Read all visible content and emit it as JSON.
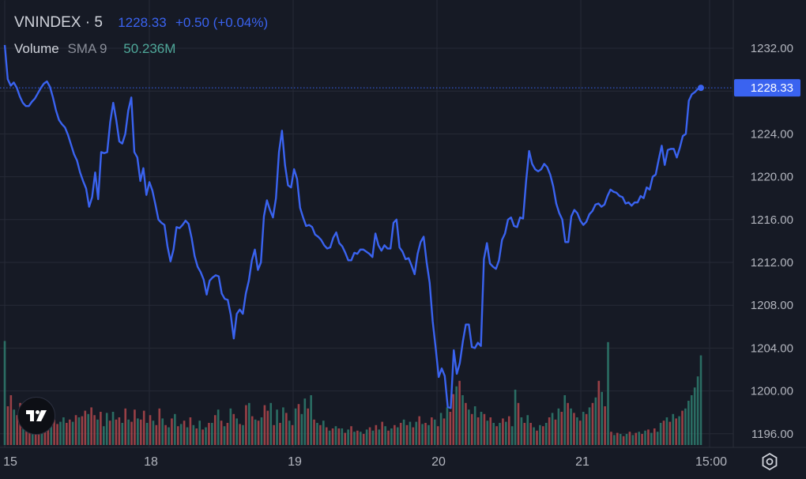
{
  "header": {
    "symbol": "VNINDEX · 5",
    "price": "1228.33",
    "change": "+0.50 (+0.04%)"
  },
  "volume_legend": {
    "label": "Volume",
    "sma": "SMA 9",
    "value": "50.236M"
  },
  "price_tag": "1228.33",
  "colors": {
    "background": "#161a25",
    "line": "#3a63f0",
    "grid": "#262a36",
    "volume_up": "#2e7d6e",
    "volume_down": "#b0484c",
    "tag_bg": "#3a63f0"
  },
  "icons": {
    "logo": "tradingview-logo-icon",
    "settings": "settings-gear-icon"
  },
  "chart_data": {
    "type": "line",
    "symbol": "VNINDEX",
    "interval": "5",
    "ylim": [
      1194.5,
      1234.5
    ],
    "y_ticks": [
      "1232.00",
      "1228.00",
      "1224.00",
      "1220.00",
      "1216.00",
      "1212.00",
      "1208.00",
      "1204.00",
      "1200.00",
      "1196.00"
    ],
    "x_ticks": [
      "15",
      "18",
      "19",
      "20",
      "21",
      "15:00"
    ],
    "series": [
      {
        "values": [
          1232.3,
          1229.1,
          1228.5,
          1228.8,
          1228.3,
          1227.5,
          1226.9,
          1226.6,
          1226.6,
          1227.0,
          1227.3,
          1227.8,
          1228.3,
          1228.7,
          1228.9,
          1228.4,
          1227.4,
          1226.2,
          1225.3,
          1224.9,
          1224.6,
          1223.9,
          1223.0,
          1222.1,
          1221.5,
          1220.4,
          1219.6,
          1218.9,
          1217.2,
          1218.1,
          1220.4,
          1217.9,
          1222.3,
          1222.2,
          1222.3,
          1225.1,
          1226.9,
          1225.3,
          1223.3,
          1223.1,
          1224.0,
          1226.2,
          1227.4,
          1222.3,
          1221.8,
          1219.6,
          1220.8,
          1218.3,
          1219.5,
          1218.7,
          1217.4,
          1216.0,
          1215.7,
          1215.5,
          1213.5,
          1212.1,
          1213.2,
          1215.3,
          1215.2,
          1215.5,
          1215.9,
          1215.6,
          1214.3,
          1212.6,
          1211.6,
          1211.1,
          1210.4,
          1209.0,
          1210.3,
          1210.6,
          1210.8,
          1210.7,
          1209.1,
          1208.6,
          1208.5,
          1207.1,
          1204.9,
          1207.2,
          1207.6,
          1207.2,
          1209.1,
          1210.3,
          1212.2,
          1213.2,
          1211.3,
          1212.0,
          1216.3,
          1217.8,
          1216.9,
          1216.2,
          1218.0,
          1222.3,
          1224.3,
          1221.1,
          1219.2,
          1219.0,
          1220.7,
          1219.8,
          1217.1,
          1216.2,
          1215.4,
          1215.5,
          1215.3,
          1214.6,
          1214.4,
          1214.1,
          1213.6,
          1213.3,
          1213.4,
          1214.3,
          1214.8,
          1213.8,
          1213.5,
          1212.9,
          1212.2,
          1212.2,
          1212.9,
          1212.8,
          1213.2,
          1213.2,
          1213.0,
          1212.8,
          1212.5,
          1214.7,
          1213.6,
          1213.1,
          1213.6,
          1213.3,
          1213.3,
          1215.7,
          1216.0,
          1213.4,
          1213.0,
          1212.3,
          1212.4,
          1211.7,
          1210.9,
          1212.8,
          1213.9,
          1214.4,
          1212.0,
          1210.1,
          1206.5,
          1204.0,
          1201.3,
          1202.1,
          1201.4,
          1198.5,
          1198.4,
          1203.8,
          1201.6,
          1202.6,
          1204.6,
          1206.2,
          1206.2,
          1204.1,
          1204.0,
          1204.5,
          1204.2,
          1212.3,
          1213.8,
          1211.9,
          1211.6,
          1211.4,
          1212.2,
          1214.1,
          1214.7,
          1216.0,
          1216.2,
          1215.4,
          1215.3,
          1216.2,
          1216.1,
          1219.6,
          1222.4,
          1221.2,
          1220.7,
          1220.5,
          1220.7,
          1221.2,
          1220.9,
          1220.2,
          1219.1,
          1217.5,
          1216.6,
          1216.0,
          1213.9,
          1213.9,
          1216.3,
          1216.9,
          1216.6,
          1215.9,
          1215.5,
          1215.8,
          1216.5,
          1216.8,
          1217.4,
          1217.5,
          1217.2,
          1217.4,
          1218.2,
          1218.8,
          1218.6,
          1218.5,
          1218.2,
          1218.1,
          1217.5,
          1217.6,
          1217.3,
          1217.6,
          1217.6,
          1218.2,
          1218.0,
          1219.0,
          1218.8,
          1220.0,
          1220.2,
          1221.6,
          1222.9,
          1221.1,
          1222.5,
          1222.6,
          1222.6,
          1221.8,
          1222.7,
          1223.8,
          1224.0,
          1227.1,
          1227.7,
          1227.9,
          1228.2,
          1228.3
        ]
      }
    ],
    "volume": [
      {
        "v": 0.94,
        "up": true
      },
      {
        "v": 0.35,
        "up": false
      },
      {
        "v": 0.45,
        "up": false
      },
      {
        "v": 0.32,
        "up": true
      },
      {
        "v": 0.27,
        "up": false
      },
      {
        "v": 0.38,
        "up": false
      },
      {
        "v": 0.22,
        "up": true
      },
      {
        "v": 0.21,
        "up": false
      },
      {
        "v": 0.28,
        "up": false
      },
      {
        "v": 0.34,
        "up": true
      },
      {
        "v": 0.26,
        "up": false
      },
      {
        "v": 0.18,
        "up": false
      },
      {
        "v": 0.23,
        "up": true
      },
      {
        "v": 0.38,
        "up": false
      },
      {
        "v": 0.3,
        "up": false
      },
      {
        "v": 0.25,
        "up": true
      },
      {
        "v": 0.23,
        "up": false
      },
      {
        "v": 0.19,
        "up": false
      },
      {
        "v": 0.21,
        "up": true
      },
      {
        "v": 0.25,
        "up": true
      },
      {
        "v": 0.2,
        "up": false
      },
      {
        "v": 0.23,
        "up": false
      },
      {
        "v": 0.21,
        "up": true
      },
      {
        "v": 0.27,
        "up": false
      },
      {
        "v": 0.25,
        "up": true
      },
      {
        "v": 0.26,
        "up": false
      },
      {
        "v": 0.31,
        "up": false
      },
      {
        "v": 0.28,
        "up": true
      },
      {
        "v": 0.34,
        "up": false
      },
      {
        "v": 0.27,
        "up": false
      },
      {
        "v": 0.23,
        "up": true
      },
      {
        "v": 0.3,
        "up": false
      },
      {
        "v": 0.17,
        "up": true
      },
      {
        "v": 0.29,
        "up": true
      },
      {
        "v": 0.22,
        "up": false
      },
      {
        "v": 0.3,
        "up": true
      },
      {
        "v": 0.23,
        "up": false
      },
      {
        "v": 0.25,
        "up": false
      },
      {
        "v": 0.2,
        "up": true
      },
      {
        "v": 0.33,
        "up": false
      },
      {
        "v": 0.23,
        "up": true
      },
      {
        "v": 0.21,
        "up": false
      },
      {
        "v": 0.32,
        "up": false
      },
      {
        "v": 0.24,
        "up": true
      },
      {
        "v": 0.23,
        "up": false
      },
      {
        "v": 0.31,
        "up": false
      },
      {
        "v": 0.2,
        "up": true
      },
      {
        "v": 0.27,
        "up": false
      },
      {
        "v": 0.22,
        "up": true
      },
      {
        "v": 0.18,
        "up": false
      },
      {
        "v": 0.33,
        "up": false
      },
      {
        "v": 0.24,
        "up": true
      },
      {
        "v": 0.18,
        "up": false
      },
      {
        "v": 0.16,
        "up": true
      },
      {
        "v": 0.24,
        "up": false
      },
      {
        "v": 0.28,
        "up": true
      },
      {
        "v": 0.17,
        "up": false
      },
      {
        "v": 0.19,
        "up": true
      },
      {
        "v": 0.22,
        "up": false
      },
      {
        "v": 0.16,
        "up": true
      },
      {
        "v": 0.25,
        "up": false
      },
      {
        "v": 0.18,
        "up": true
      },
      {
        "v": 0.15,
        "up": false
      },
      {
        "v": 0.22,
        "up": true
      },
      {
        "v": 0.14,
        "up": false
      },
      {
        "v": 0.16,
        "up": true
      },
      {
        "v": 0.2,
        "up": false
      },
      {
        "v": 0.2,
        "up": true
      },
      {
        "v": 0.27,
        "up": false
      },
      {
        "v": 0.32,
        "up": true
      },
      {
        "v": 0.22,
        "up": false
      },
      {
        "v": 0.17,
        "up": true
      },
      {
        "v": 0.2,
        "up": false
      },
      {
        "v": 0.33,
        "up": true
      },
      {
        "v": 0.28,
        "up": false
      },
      {
        "v": 0.24,
        "up": true
      },
      {
        "v": 0.19,
        "up": false
      },
      {
        "v": 0.18,
        "up": true
      },
      {
        "v": 0.36,
        "up": false
      },
      {
        "v": 0.38,
        "up": true
      },
      {
        "v": 0.26,
        "up": false
      },
      {
        "v": 0.23,
        "up": true
      },
      {
        "v": 0.22,
        "up": false
      },
      {
        "v": 0.25,
        "up": true
      },
      {
        "v": 0.36,
        "up": false
      },
      {
        "v": 0.31,
        "up": false
      },
      {
        "v": 0.38,
        "up": true
      },
      {
        "v": 0.18,
        "up": false
      },
      {
        "v": 0.32,
        "up": true
      },
      {
        "v": 0.2,
        "up": false
      },
      {
        "v": 0.34,
        "up": true
      },
      {
        "v": 0.29,
        "up": false
      },
      {
        "v": 0.22,
        "up": true
      },
      {
        "v": 0.18,
        "up": false
      },
      {
        "v": 0.33,
        "up": true
      },
      {
        "v": 0.37,
        "up": false
      },
      {
        "v": 0.28,
        "up": true
      },
      {
        "v": 0.42,
        "up": true
      },
      {
        "v": 0.33,
        "up": false
      },
      {
        "v": 0.45,
        "up": true
      },
      {
        "v": 0.23,
        "up": false
      },
      {
        "v": 0.2,
        "up": true
      },
      {
        "v": 0.18,
        "up": false
      },
      {
        "v": 0.22,
        "up": true
      },
      {
        "v": 0.16,
        "up": false
      },
      {
        "v": 0.13,
        "up": true
      },
      {
        "v": 0.15,
        "up": false
      },
      {
        "v": 0.17,
        "up": true
      },
      {
        "v": 0.15,
        "up": false
      },
      {
        "v": 0.15,
        "up": true
      },
      {
        "v": 0.11,
        "up": false
      },
      {
        "v": 0.14,
        "up": true
      },
      {
        "v": 0.17,
        "up": false
      },
      {
        "v": 0.12,
        "up": true
      },
      {
        "v": 0.13,
        "up": false
      },
      {
        "v": 0.12,
        "up": true
      },
      {
        "v": 0.1,
        "up": false
      },
      {
        "v": 0.14,
        "up": true
      },
      {
        "v": 0.16,
        "up": false
      },
      {
        "v": 0.13,
        "up": true
      },
      {
        "v": 0.18,
        "up": false
      },
      {
        "v": 0.14,
        "up": true
      },
      {
        "v": 0.21,
        "up": false
      },
      {
        "v": 0.17,
        "up": true
      },
      {
        "v": 0.13,
        "up": false
      },
      {
        "v": 0.15,
        "up": true
      },
      {
        "v": 0.18,
        "up": false
      },
      {
        "v": 0.16,
        "up": true
      },
      {
        "v": 0.2,
        "up": false
      },
      {
        "v": 0.23,
        "up": true
      },
      {
        "v": 0.18,
        "up": false
      },
      {
        "v": 0.21,
        "up": true
      },
      {
        "v": 0.16,
        "up": false
      },
      {
        "v": 0.21,
        "up": true
      },
      {
        "v": 0.26,
        "up": false
      },
      {
        "v": 0.19,
        "up": true
      },
      {
        "v": 0.2,
        "up": false
      },
      {
        "v": 0.18,
        "up": true
      },
      {
        "v": 0.25,
        "up": false
      },
      {
        "v": 0.23,
        "up": true
      },
      {
        "v": 0.17,
        "up": false
      },
      {
        "v": 0.29,
        "up": true
      },
      {
        "v": 0.24,
        "up": false
      },
      {
        "v": 0.34,
        "up": true
      },
      {
        "v": 0.3,
        "up": false
      },
      {
        "v": 0.46,
        "up": false
      },
      {
        "v": 0.53,
        "up": true
      },
      {
        "v": 0.58,
        "up": false
      },
      {
        "v": 0.45,
        "up": true
      },
      {
        "v": 0.38,
        "up": false
      },
      {
        "v": 0.32,
        "up": true
      },
      {
        "v": 0.28,
        "up": false
      },
      {
        "v": 0.35,
        "up": true
      },
      {
        "v": 0.25,
        "up": false
      },
      {
        "v": 0.3,
        "up": true
      },
      {
        "v": 0.28,
        "up": false
      },
      {
        "v": 0.22,
        "up": true
      },
      {
        "v": 0.25,
        "up": false
      },
      {
        "v": 0.2,
        "up": true
      },
      {
        "v": 0.17,
        "up": false
      },
      {
        "v": 0.2,
        "up": true
      },
      {
        "v": 0.24,
        "up": false
      },
      {
        "v": 0.21,
        "up": true
      },
      {
        "v": 0.26,
        "up": false
      },
      {
        "v": 0.17,
        "up": true
      },
      {
        "v": 0.5,
        "up": true
      },
      {
        "v": 0.38,
        "up": false
      },
      {
        "v": 0.25,
        "up": true
      },
      {
        "v": 0.2,
        "up": false
      },
      {
        "v": 0.27,
        "up": true
      },
      {
        "v": 0.2,
        "up": false
      },
      {
        "v": 0.16,
        "up": true
      },
      {
        "v": 0.13,
        "up": false
      },
      {
        "v": 0.18,
        "up": true
      },
      {
        "v": 0.17,
        "up": false
      },
      {
        "v": 0.2,
        "up": true
      },
      {
        "v": 0.25,
        "up": false
      },
      {
        "v": 0.29,
        "up": true
      },
      {
        "v": 0.23,
        "up": false
      },
      {
        "v": 0.33,
        "up": true
      },
      {
        "v": 0.3,
        "up": false
      },
      {
        "v": 0.45,
        "up": true
      },
      {
        "v": 0.38,
        "up": false
      },
      {
        "v": 0.33,
        "up": true
      },
      {
        "v": 0.29,
        "up": false
      },
      {
        "v": 0.25,
        "up": true
      },
      {
        "v": 0.22,
        "up": false
      },
      {
        "v": 0.3,
        "up": true
      },
      {
        "v": 0.28,
        "up": false
      },
      {
        "v": 0.34,
        "up": true
      },
      {
        "v": 0.38,
        "up": false
      },
      {
        "v": 0.43,
        "up": true
      },
      {
        "v": 0.58,
        "up": false
      },
      {
        "v": 0.48,
        "up": true
      },
      {
        "v": 0.35,
        "up": false
      },
      {
        "v": 0.93,
        "up": true
      },
      {
        "v": 0.12,
        "up": false
      },
      {
        "v": 0.09,
        "up": true
      },
      {
        "v": 0.11,
        "up": false
      },
      {
        "v": 0.1,
        "up": true
      },
      {
        "v": 0.08,
        "up": false
      },
      {
        "v": 0.1,
        "up": true
      },
      {
        "v": 0.12,
        "up": false
      },
      {
        "v": 0.09,
        "up": true
      },
      {
        "v": 0.11,
        "up": false
      },
      {
        "v": 0.12,
        "up": true
      },
      {
        "v": 0.1,
        "up": false
      },
      {
        "v": 0.13,
        "up": true
      },
      {
        "v": 0.14,
        "up": false
      },
      {
        "v": 0.11,
        "up": true
      },
      {
        "v": 0.15,
        "up": false
      },
      {
        "v": 0.12,
        "up": true
      },
      {
        "v": 0.2,
        "up": true
      },
      {
        "v": 0.22,
        "up": false
      },
      {
        "v": 0.25,
        "up": true
      },
      {
        "v": 0.21,
        "up": false
      },
      {
        "v": 0.28,
        "up": true
      },
      {
        "v": 0.24,
        "up": false
      },
      {
        "v": 0.26,
        "up": true
      },
      {
        "v": 0.31,
        "up": false
      },
      {
        "v": 0.33,
        "up": true
      },
      {
        "v": 0.4,
        "up": true
      },
      {
        "v": 0.45,
        "up": true
      },
      {
        "v": 0.52,
        "up": true
      },
      {
        "v": 0.62,
        "up": true
      },
      {
        "v": 0.81,
        "up": true
      }
    ]
  }
}
